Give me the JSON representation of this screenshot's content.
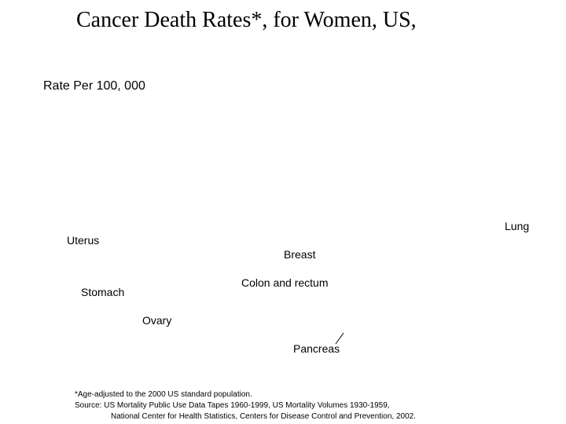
{
  "chart_data": {
    "type": "line",
    "title": "Cancer Death Rates*, for Women, US,",
    "ylabel": "Rate Per 100, 000",
    "series": [
      {
        "name": "Lung"
      },
      {
        "name": "Uterus"
      },
      {
        "name": "Breast"
      },
      {
        "name": "Colon and rectum"
      },
      {
        "name": "Stomach"
      },
      {
        "name": "Ovary"
      },
      {
        "name": "Pancreas"
      }
    ]
  },
  "footnote": {
    "line1": "*Age-adjusted to the 2000 US standard population.",
    "line2": "Source:  US Mortality Public Use Data Tapes 1960-1999, US Mortality Volumes 1930-1959,",
    "line3": "National Center for Health Statistics, Centers for Disease Control and Prevention, 2002."
  }
}
